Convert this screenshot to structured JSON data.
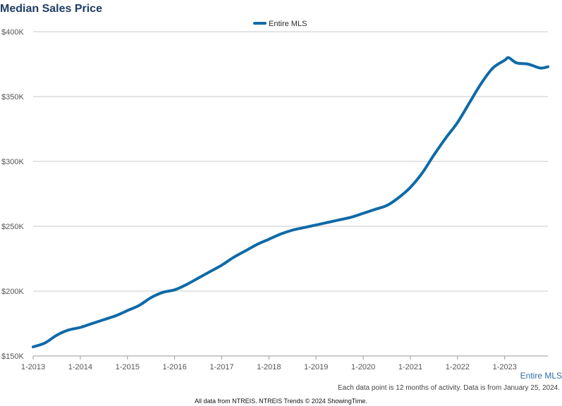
{
  "chart_data": {
    "type": "line",
    "title": "Median Sales Price",
    "xlabel": "",
    "ylabel": "",
    "ylim": [
      150000,
      400000
    ],
    "y_tick_values": [
      150000,
      200000,
      250000,
      300000,
      350000,
      400000
    ],
    "y_tick_labels": [
      "$150K",
      "$200K",
      "$250K",
      "$300K",
      "$350K",
      "$400K"
    ],
    "x_range": [
      "2013-01",
      "2023-12"
    ],
    "x_tick_labels": [
      "1-2013",
      "1-2014",
      "1-2015",
      "1-2016",
      "1-2017",
      "1-2018",
      "1-2019",
      "1-2020",
      "1-2021",
      "1-2022",
      "1-2023"
    ],
    "legend_position": "top-center",
    "grid": "horizontal",
    "series": [
      {
        "name": "Entire MLS",
        "color": "#0e6aa8",
        "x": [
          "2013-01",
          "2013-04",
          "2013-07",
          "2013-10",
          "2014-01",
          "2014-04",
          "2014-07",
          "2014-10",
          "2015-01",
          "2015-04",
          "2015-07",
          "2015-10",
          "2016-01",
          "2016-04",
          "2016-07",
          "2016-10",
          "2017-01",
          "2017-04",
          "2017-07",
          "2017-10",
          "2018-01",
          "2018-04",
          "2018-07",
          "2018-10",
          "2019-01",
          "2019-04",
          "2019-07",
          "2019-10",
          "2020-01",
          "2020-04",
          "2020-07",
          "2020-10",
          "2021-01",
          "2021-04",
          "2021-07",
          "2021-10",
          "2022-01",
          "2022-04",
          "2022-07",
          "2022-10",
          "2023-01",
          "2023-02",
          "2023-04",
          "2023-07",
          "2023-10",
          "2023-12"
        ],
        "values": [
          157000,
          160000,
          166000,
          170000,
          172000,
          175000,
          178000,
          181000,
          185000,
          189000,
          195000,
          199000,
          201000,
          205000,
          210000,
          215000,
          220000,
          226000,
          231000,
          236000,
          240000,
          244000,
          247000,
          249000,
          251000,
          253000,
          255000,
          257000,
          260000,
          263000,
          266000,
          272000,
          280000,
          291000,
          305000,
          318000,
          330000,
          345000,
          360000,
          372000,
          378000,
          380000,
          376000,
          375000,
          372000,
          373000
        ]
      }
    ]
  },
  "annotations": {
    "series_end_label": "Entire MLS",
    "activity_note": "Each data point is 12 months of activity. Data is from January 25, 2024.",
    "footer_credit": "All data from NTREIS. NTREIS Trends © 2024 ShowingTime."
  }
}
